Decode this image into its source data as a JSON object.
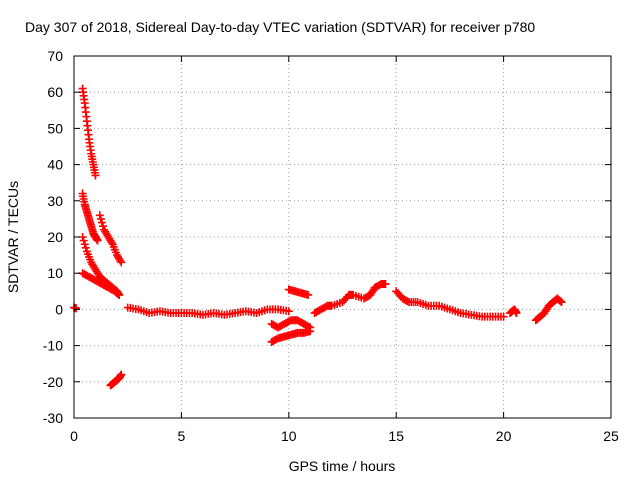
{
  "chart_data": {
    "type": "scatter",
    "title": "Day 307 of 2018, Sidereal Day-to-day VTEC variation (SDTVAR) for receiver p780",
    "xlabel": "GPS time / hours",
    "ylabel": "SDTVAR / TECUs",
    "xlim": [
      0,
      25
    ],
    "ylim": [
      -30,
      70
    ],
    "xticks": [
      0,
      5,
      10,
      15,
      20,
      25
    ],
    "yticks": [
      -30,
      -20,
      -10,
      0,
      10,
      20,
      30,
      40,
      50,
      60,
      70
    ],
    "xtick_labels": [
      "0",
      "5",
      "10",
      "15",
      "20",
      "25"
    ],
    "ytick_labels": [
      "-30",
      "-20",
      "-10",
      "0",
      "10",
      "20",
      "30",
      "40",
      "50",
      "60",
      "70"
    ],
    "grid": true,
    "grid_style": "dotted",
    "marker": "+",
    "series_color": "#ff0000",
    "series": [
      {
        "name": "SDTVAR",
        "segments": [
          {
            "label": "isolated point near 0h",
            "x": [
              0.0,
              0.1
            ],
            "y": [
              0.5,
              0.3
            ]
          },
          {
            "label": "steep decay from 61",
            "x": [
              0.4,
              0.5,
              0.6,
              0.7,
              0.8,
              0.9,
              1.0
            ],
            "y": [
              61,
              57,
              52,
              47,
              43,
              40,
              37
            ]
          },
          {
            "label": "decay from 32",
            "x": [
              0.4,
              0.5,
              0.6,
              0.7,
              0.8,
              0.9,
              1.0,
              1.1
            ],
            "y": [
              32,
              29,
              27,
              25,
              23,
              21,
              20,
              19
            ]
          },
          {
            "label": "decay from 20",
            "x": [
              0.4,
              0.6,
              0.8,
              1.0,
              1.2,
              1.4,
              1.6,
              1.8,
              2.0,
              2.1
            ],
            "y": [
              20,
              16,
              13,
              11,
              9,
              8,
              7,
              6,
              5,
              4
            ]
          },
          {
            "label": "decay from 10",
            "x": [
              0.4,
              0.7,
              1.0,
              1.3,
              1.6,
              1.9,
              2.1
            ],
            "y": [
              10,
              9,
              8,
              7,
              6,
              5,
              4
            ]
          },
          {
            "label": "decay from 26",
            "x": [
              1.2,
              1.4,
              1.6,
              1.8,
              2.0,
              2.2
            ],
            "y": [
              26,
              22,
              20,
              18,
              15,
              13
            ]
          },
          {
            "label": "negative branch",
            "x": [
              1.7,
              1.8,
              1.9,
              2.0,
              2.1,
              2.2
            ],
            "y": [
              -21,
              -20.5,
              -20,
              -19.5,
              -19,
              -18
            ]
          },
          {
            "label": "near-zero band",
            "x": [
              2.5,
              3.0,
              3.5,
              4.0,
              4.5,
              5.0,
              5.5,
              6.0,
              6.5,
              7.0,
              7.5,
              8.0,
              8.5,
              9.0,
              9.5,
              10.0
            ],
            "y": [
              0.5,
              0,
              -1,
              -0.5,
              -1,
              -1,
              -1,
              -1.5,
              -1,
              -1.5,
              -1,
              -0.5,
              -1,
              0,
              0,
              -0.5
            ]
          },
          {
            "label": "negative segment 9-11h",
            "x": [
              9.2,
              9.5,
              9.8,
              10.1,
              10.4,
              10.7,
              11.0
            ],
            "y": [
              -9,
              -8,
              -7.5,
              -7,
              -6.5,
              -6.5,
              -6
            ]
          },
          {
            "label": "short segment near -5",
            "x": [
              9.2,
              9.5,
              9.8,
              10.1,
              10.4,
              10.7,
              11.0
            ],
            "y": [
              -4,
              -5,
              -4,
              -3,
              -3,
              -4,
              -5
            ]
          },
          {
            "label": "segment near 5 at 10h",
            "x": [
              10.0,
              10.3,
              10.6,
              10.9
            ],
            "y": [
              5.5,
              5,
              4.5,
              4
            ]
          },
          {
            "label": "rise 11-15h",
            "x": [
              11.2,
              11.5,
              11.8,
              12.0,
              12.5,
              12.8,
              13.0,
              13.5,
              13.8,
              14.0,
              14.3,
              14.5
            ],
            "y": [
              -1,
              0,
              1,
              1,
              2,
              4,
              4,
              3,
              4,
              6,
              7,
              7
            ]
          },
          {
            "label": "slow decline 15-20h",
            "x": [
              15.0,
              15.3,
              15.6,
              16.0,
              16.5,
              17.0,
              17.5,
              18.0,
              18.5,
              19.0,
              19.5,
              20.0
            ],
            "y": [
              5,
              3,
              2,
              2,
              1,
              1,
              0,
              -1,
              -1.5,
              -2,
              -2,
              -2
            ]
          },
          {
            "label": "segment 20.5h",
            "x": [
              20.3,
              20.5,
              20.6
            ],
            "y": [
              -1,
              0,
              -1
            ]
          },
          {
            "label": "final segment 21.5-22.7h",
            "x": [
              21.5,
              21.7,
              21.9,
              22.1,
              22.3,
              22.5,
              22.7
            ],
            "y": [
              -3,
              -2,
              -1,
              1,
              2,
              3,
              2
            ]
          }
        ]
      }
    ]
  }
}
